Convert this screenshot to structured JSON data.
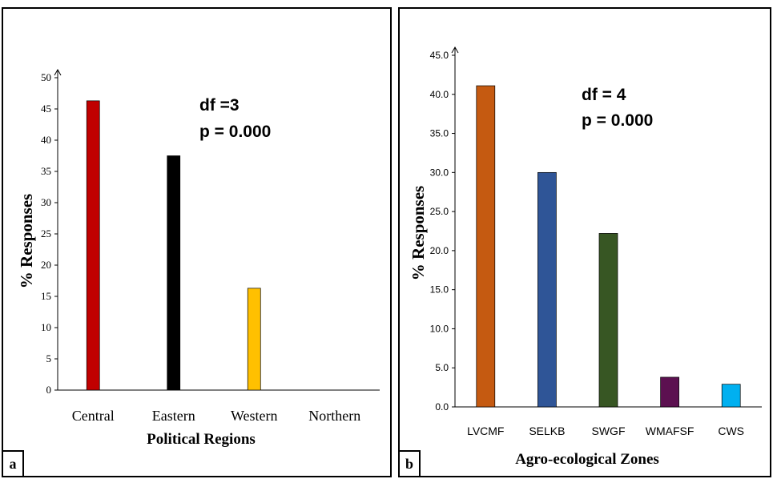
{
  "chart_data": [
    {
      "panel_label": "a",
      "type": "bar",
      "categories": [
        "Central",
        "Eastern",
        "Western",
        "Northern"
      ],
      "values": [
        46.3,
        37.5,
        16.3,
        0
      ],
      "colors": [
        "#c00000",
        "#000000",
        "#ffc000",
        "#999999"
      ],
      "xlabel": "Political Regions",
      "ylabel": "% Responses",
      "ylim": [
        0,
        50
      ],
      "yticks": [
        "0",
        "5",
        "10",
        "15",
        "20",
        "25",
        "30",
        "35",
        "40",
        "45",
        "50"
      ],
      "annotations": [
        "df =3",
        "p = 0.000"
      ],
      "grid": false,
      "legend": "none"
    },
    {
      "panel_label": "b",
      "type": "bar",
      "categories": [
        "LVCMF",
        "SELKB",
        "SWGF",
        "WMAFSF",
        "CWS"
      ],
      "values": [
        41.1,
        30.0,
        22.2,
        3.8,
        2.9
      ],
      "colors": [
        "#c55a11",
        "#2f5597",
        "#375623",
        "#5c1050",
        "#00b0f0"
      ],
      "xlabel": "Agro-ecological Zones",
      "ylabel": "% Responses",
      "ylim": [
        0,
        45
      ],
      "yticks": [
        "0.0",
        "5.0",
        "10.0",
        "15.0",
        "20.0",
        "25.0",
        "30.0",
        "35.0",
        "40.0",
        "45.0"
      ],
      "annotations": [
        "df = 4",
        "p = 0.000"
      ],
      "grid": false,
      "legend": "none"
    }
  ]
}
